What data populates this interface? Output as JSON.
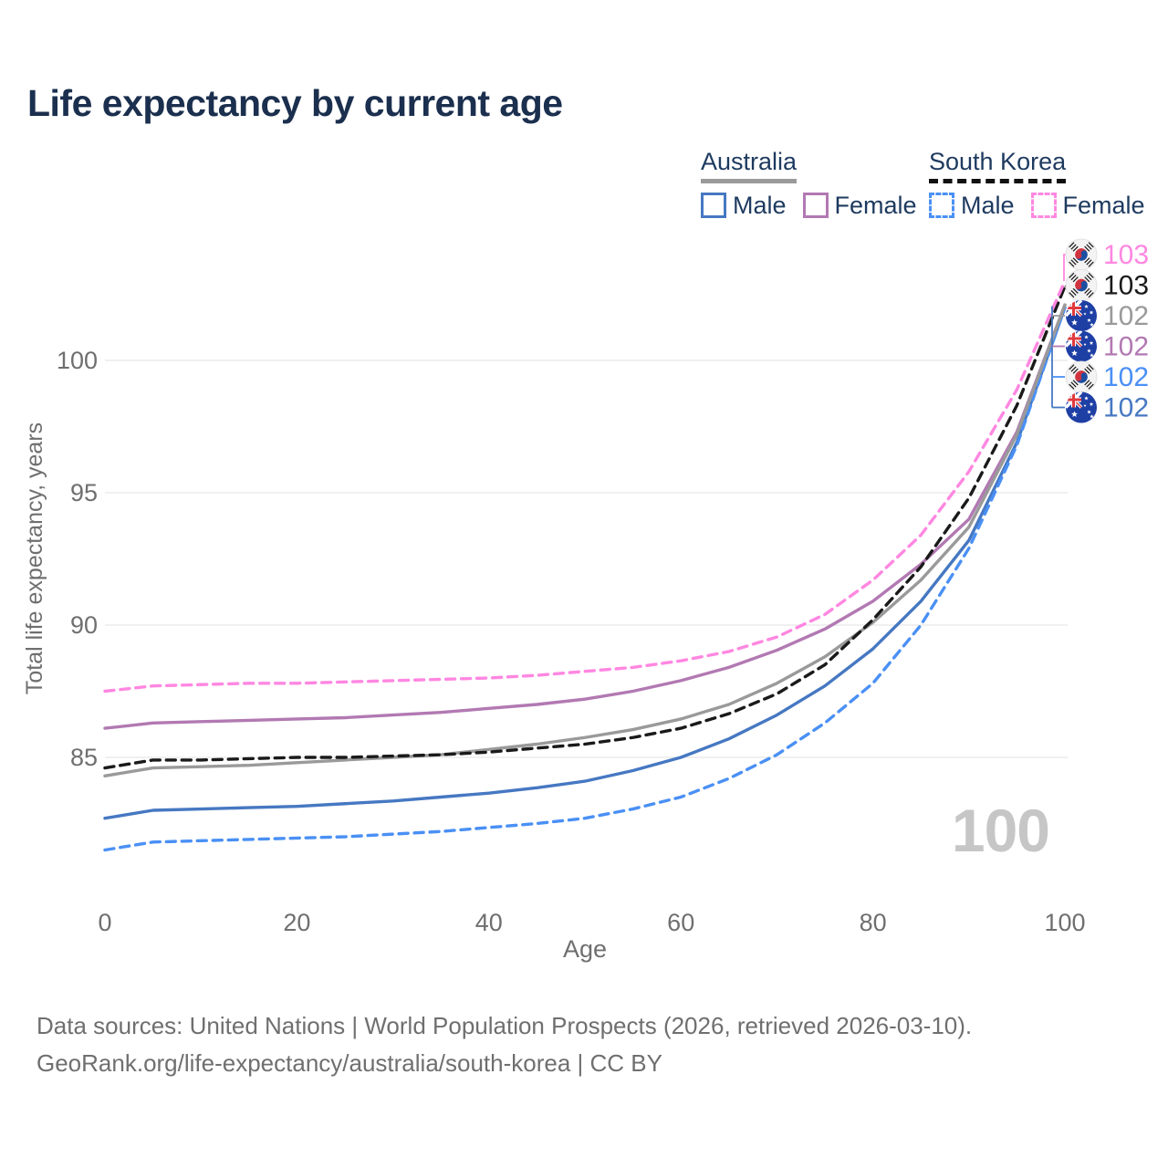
{
  "title": "Life expectancy by current age",
  "legend": {
    "groups": [
      {
        "label": "Australia",
        "line_color": "#9a9a9a",
        "line_style": "solid",
        "items": [
          {
            "label": "Male",
            "color": "#4678c2",
            "style": "solid"
          },
          {
            "label": "Female",
            "color": "#b279b2",
            "style": "solid"
          }
        ]
      },
      {
        "label": "South Korea",
        "line_color": "#111111",
        "line_style": "dashed",
        "items": [
          {
            "label": "Male",
            "color": "#4a90f5",
            "style": "dashed"
          },
          {
            "label": "Female",
            "color": "#ff87e1",
            "style": "dashed"
          }
        ]
      }
    ]
  },
  "watermark": "100",
  "footer": {
    "line1": "Data sources: United Nations | World Population Prospects (2026, retrieved 2026-03-10).",
    "line2": "GeoRank.org/life-expectancy/australia/south-korea | CC BY"
  },
  "end_labels": [
    {
      "flag": "kr",
      "value": "103",
      "color": "#ff87e1"
    },
    {
      "flag": "kr",
      "value": "103",
      "color": "#1a1a1a"
    },
    {
      "flag": "au",
      "value": "102",
      "color": "#9a9a9a"
    },
    {
      "flag": "au",
      "value": "102",
      "color": "#b279b2"
    },
    {
      "flag": "kr",
      "value": "102",
      "color": "#4a90f5"
    },
    {
      "flag": "au",
      "value": "102",
      "color": "#4678c2"
    }
  ],
  "chart_data": {
    "type": "line",
    "title": "Life expectancy by current age",
    "xlabel": "Age",
    "ylabel": "Total life expectancy, years",
    "x": [
      0,
      5,
      10,
      15,
      20,
      25,
      30,
      35,
      40,
      45,
      50,
      55,
      60,
      65,
      70,
      75,
      80,
      85,
      90,
      95,
      100
    ],
    "x_ticks": [
      0,
      20,
      40,
      60,
      80,
      100
    ],
    "y_ticks": [
      85,
      90,
      95,
      100
    ],
    "xlim": [
      0,
      100
    ],
    "ylim": [
      80,
      104.5
    ],
    "grid": true,
    "legend_position": "top-right",
    "series": [
      {
        "name": "Australia Male",
        "country": "Australia",
        "sex": "Male",
        "color": "#4678c2",
        "dash": false,
        "end_label": "102",
        "values": [
          82.7,
          83.0,
          83.05,
          83.1,
          83.15,
          83.25,
          83.35,
          83.5,
          83.65,
          83.85,
          84.1,
          84.5,
          85.0,
          85.7,
          86.6,
          87.7,
          89.1,
          90.9,
          93.2,
          96.9,
          102.0
        ]
      },
      {
        "name": "South Korea Male",
        "country": "South Korea",
        "sex": "Male",
        "color": "#4a90f5",
        "dash": true,
        "end_label": "102",
        "values": [
          81.5,
          81.8,
          81.85,
          81.9,
          81.95,
          82.0,
          82.1,
          82.2,
          82.35,
          82.5,
          82.7,
          83.05,
          83.5,
          84.2,
          85.1,
          86.3,
          87.8,
          90.0,
          92.9,
          96.8,
          102.0
        ]
      },
      {
        "name": "Australia Female",
        "country": "Australia",
        "sex": "Female",
        "color": "#b279b2",
        "dash": false,
        "end_label": "102",
        "values": [
          86.1,
          86.3,
          86.35,
          86.4,
          86.45,
          86.5,
          86.6,
          86.7,
          86.85,
          87.0,
          87.2,
          87.5,
          87.9,
          88.4,
          89.05,
          89.85,
          90.9,
          92.3,
          94.0,
          97.3,
          102.1
        ]
      },
      {
        "name": "Australia Total",
        "country": "Australia",
        "sex": "Total",
        "color": "#9a9a9a",
        "dash": false,
        "end_label": "102",
        "values": [
          84.3,
          84.6,
          84.65,
          84.7,
          84.8,
          84.9,
          85.0,
          85.1,
          85.3,
          85.5,
          85.75,
          86.05,
          86.45,
          87.0,
          87.8,
          88.8,
          90.1,
          91.7,
          93.7,
          97.2,
          102.1
        ]
      },
      {
        "name": "South Korea Total",
        "country": "South Korea",
        "sex": "Total",
        "color": "#1a1a1a",
        "dash": true,
        "end_label": "103",
        "values": [
          84.6,
          84.9,
          84.9,
          84.95,
          85.0,
          85.0,
          85.05,
          85.1,
          85.2,
          85.35,
          85.5,
          85.75,
          86.1,
          86.65,
          87.4,
          88.5,
          90.2,
          92.2,
          94.8,
          98.3,
          102.8
        ]
      },
      {
        "name": "South Korea Female",
        "country": "South Korea",
        "sex": "Female",
        "color": "#ff87e1",
        "dash": true,
        "end_label": "103",
        "values": [
          87.5,
          87.7,
          87.75,
          87.8,
          87.8,
          87.85,
          87.9,
          87.95,
          88.0,
          88.1,
          88.25,
          88.4,
          88.65,
          89.0,
          89.55,
          90.4,
          91.7,
          93.4,
          95.8,
          98.9,
          103.0
        ]
      }
    ]
  }
}
